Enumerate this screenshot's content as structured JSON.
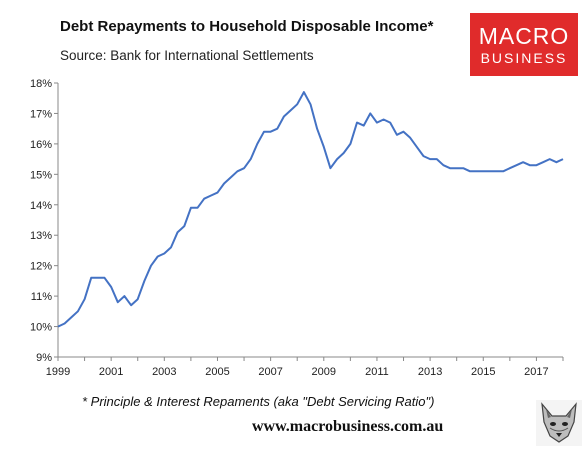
{
  "header": {
    "title": "Debt Repayments to Household Disposable Income*",
    "source": "Source: Bank for International Settlements"
  },
  "logo": {
    "line1": "MACRO",
    "line2": "BUSINESS",
    "color": "#e02b2b"
  },
  "footer": {
    "footnote": "* Principle & Interest Repaments (aka \"Debt Servicing Ratio\")",
    "website": "www.macrobusiness.com.au",
    "mascot_icon": "fox-icon"
  },
  "chart_data": {
    "type": "line",
    "title": "Debt Repayments to Household Disposable Income*",
    "xlabel": "",
    "ylabel": "",
    "xlim": [
      1999,
      2018
    ],
    "ylim": [
      9,
      18
    ],
    "grid": false,
    "legend": "none",
    "line_color": "#4472c4",
    "x_ticks": [
      "1999",
      "2001",
      "2003",
      "2005",
      "2007",
      "2009",
      "2011",
      "2013",
      "2015",
      "2017"
    ],
    "y_ticks": [
      "9%",
      "10%",
      "11%",
      "12%",
      "13%",
      "14%",
      "15%",
      "16%",
      "17%",
      "18%"
    ],
    "series": [
      {
        "x": [
          1999.0,
          1999.25,
          1999.5,
          1999.75,
          2000.0,
          2000.25,
          2000.5,
          2000.75,
          2001.0,
          2001.25,
          2001.5,
          2001.75,
          2002.0,
          2002.25,
          2002.5,
          2002.75,
          2003.0,
          2003.25,
          2003.5,
          2003.75,
          2004.0,
          2004.25,
          2004.5,
          2004.75,
          2005.0,
          2005.25,
          2005.5,
          2005.75,
          2006.0,
          2006.25,
          2006.5,
          2006.75,
          2007.0,
          2007.25,
          2007.5,
          2007.75,
          2008.0,
          2008.25,
          2008.5,
          2008.75,
          2009.0,
          2009.25,
          2009.5,
          2009.75,
          2010.0,
          2010.25,
          2010.5,
          2010.75,
          2011.0,
          2011.25,
          2011.5,
          2011.75,
          2012.0,
          2012.25,
          2012.5,
          2012.75,
          2013.0,
          2013.25,
          2013.5,
          2013.75,
          2014.0,
          2014.25,
          2014.5,
          2014.75,
          2015.0,
          2015.25,
          2015.5,
          2015.75,
          2016.0,
          2016.25,
          2016.5,
          2016.75,
          2017.0,
          2017.25,
          2017.5,
          2017.75,
          2018.0
        ],
        "values": [
          10.0,
          10.1,
          10.3,
          10.5,
          10.9,
          11.6,
          11.6,
          11.6,
          11.3,
          10.8,
          11.0,
          10.7,
          10.9,
          11.5,
          12.0,
          12.3,
          12.4,
          12.6,
          13.1,
          13.3,
          13.9,
          13.9,
          14.2,
          14.3,
          14.4,
          14.7,
          14.9,
          15.1,
          15.2,
          15.5,
          16.0,
          16.4,
          16.4,
          16.5,
          16.9,
          17.1,
          17.3,
          17.7,
          17.3,
          16.5,
          15.9,
          15.2,
          15.5,
          15.7,
          16.0,
          16.7,
          16.6,
          17.0,
          16.7,
          16.8,
          16.7,
          16.3,
          16.4,
          16.2,
          15.9,
          15.6,
          15.5,
          15.5,
          15.3,
          15.2,
          15.2,
          15.2,
          15.1,
          15.1,
          15.1,
          15.1,
          15.1,
          15.1,
          15.2,
          15.3,
          15.4,
          15.3,
          15.3,
          15.4,
          15.5,
          15.4,
          15.5
        ]
      }
    ]
  }
}
